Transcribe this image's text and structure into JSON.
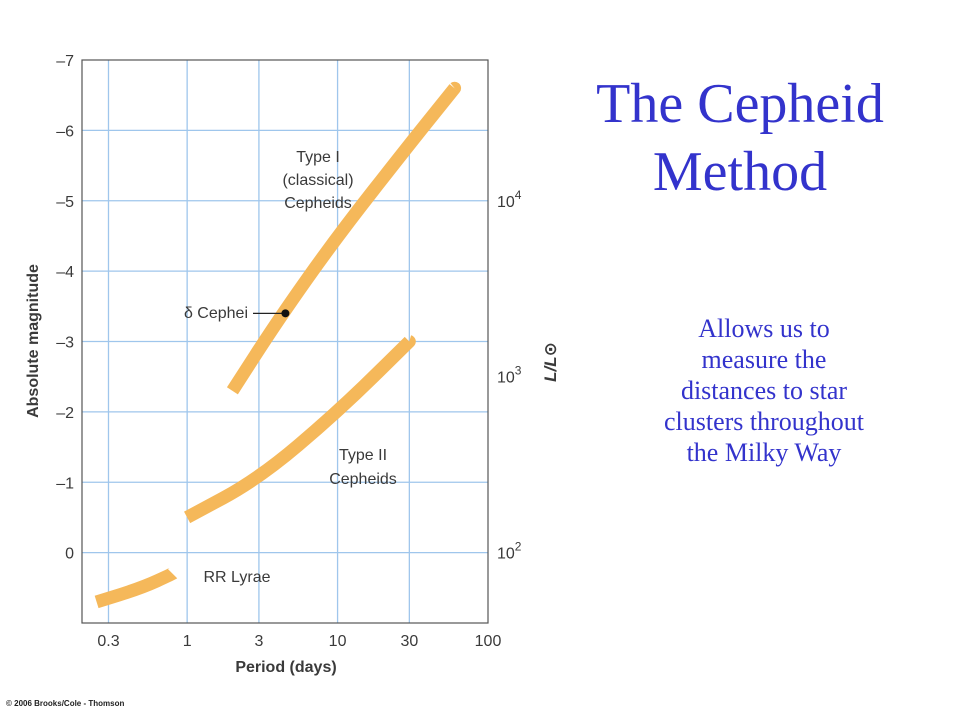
{
  "slide": {
    "title_line1": "The Cepheid",
    "title_line2": "Method",
    "body_line1": "Allows us to",
    "body_line2": "measure the",
    "body_line3": "distances to star",
    "body_line4": "clusters throughout",
    "body_line5": "the Milky Way",
    "copyright": "© 2006 Brooks/Cole - Thomson",
    "title_color": "#3333cc"
  },
  "chart_data": {
    "type": "line",
    "xlabel": "Period (days)",
    "ylabel": "Absolute magnitude",
    "y2label": "L/L⊙",
    "x_scale": "log",
    "xlim": [
      0.2,
      100
    ],
    "ylim": [
      1,
      -7
    ],
    "y_reversed": true,
    "grid": true,
    "x_ticks": [
      {
        "v": 0.3,
        "label": "0.3"
      },
      {
        "v": 1,
        "label": "1"
      },
      {
        "v": 3,
        "label": "3"
      },
      {
        "v": 10,
        "label": "10"
      },
      {
        "v": 30,
        "label": "30"
      },
      {
        "v": 100,
        "label": "100"
      }
    ],
    "y_ticks": [
      {
        "v": 0,
        "label": "0"
      },
      {
        "v": -1,
        "label": "–1"
      },
      {
        "v": -2,
        "label": "–2"
      },
      {
        "v": -3,
        "label": "–3"
      },
      {
        "v": -4,
        "label": "–4"
      },
      {
        "v": -5,
        "label": "–5"
      },
      {
        "v": -6,
        "label": "–6"
      },
      {
        "v": -7,
        "label": "–7"
      }
    ],
    "y2_ticks": [
      {
        "mag": 0,
        "base": "10",
        "exp": "2"
      },
      {
        "mag": -2.5,
        "base": "10",
        "exp": "3"
      },
      {
        "mag": -5,
        "base": "10",
        "exp": "4"
      }
    ],
    "band_color": "#f5b85a",
    "series": [
      {
        "name": "Type I (classical) Cepheids",
        "x": [
          2,
          4,
          10,
          30,
          60
        ],
        "y": [
          -2.3,
          -3.3,
          -4.5,
          -5.8,
          -6.6
        ]
      },
      {
        "name": "Type II Cepheids",
        "x": [
          1,
          3,
          10,
          30
        ],
        "y": [
          -0.5,
          -1.05,
          -2.0,
          -3.0
        ]
      },
      {
        "name": "RR Lyrae",
        "x": [
          0.25,
          0.5,
          0.8
        ],
        "y": [
          0.7,
          0.5,
          0.3
        ]
      }
    ],
    "annotations": [
      {
        "lines": [
          "Type I",
          "(classical)",
          "Cepheids"
        ]
      },
      {
        "lines": [
          "Type II",
          "Cepheids"
        ]
      },
      {
        "lines": [
          "RR Lyrae"
        ]
      }
    ],
    "point": {
      "label": "δ Cephei",
      "x": 4.5,
      "y": -3.4
    }
  }
}
